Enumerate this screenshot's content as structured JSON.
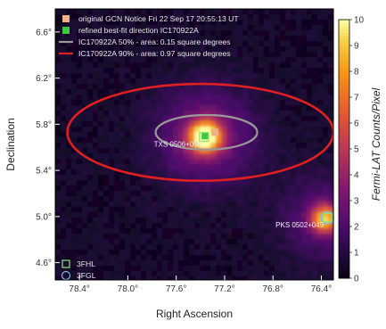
{
  "chart_data": {
    "type": "heatmap",
    "xlabel": "Right Ascension",
    "ylabel": "Declination",
    "colorbar_label": "Fermi-LAT Counts/Pixel",
    "xlim": [
      78.6,
      76.3
    ],
    "ylim": [
      4.45,
      6.8
    ],
    "x_ticks": [
      {
        "value": 78.4,
        "label": "78.4°"
      },
      {
        "value": 78.0,
        "label": "78.0°"
      },
      {
        "value": 77.6,
        "label": "77.6°"
      },
      {
        "value": 77.2,
        "label": "77.2°"
      },
      {
        "value": 76.8,
        "label": "76.8°"
      },
      {
        "value": 76.4,
        "label": "76.4°"
      }
    ],
    "y_ticks": [
      {
        "value": 4.6,
        "label": "4.6°"
      },
      {
        "value": 5.0,
        "label": "5.0°"
      },
      {
        "value": 5.4,
        "label": "5.4°"
      },
      {
        "value": 5.8,
        "label": "5.8°"
      },
      {
        "value": 6.2,
        "label": "6.2°"
      },
      {
        "value": 6.6,
        "label": "6.6°"
      }
    ],
    "colorbar": {
      "min": 0,
      "max": 10,
      "ticks": [
        0,
        1,
        2,
        3,
        4,
        5,
        6,
        7,
        8,
        9,
        10
      ]
    },
    "legend_top": [
      {
        "key": "gcn",
        "label": "original GCN Notice Fri 22 Sep 17 20:55:13 UT",
        "marker": "square",
        "color": "#f0b088"
      },
      {
        "key": "refined",
        "label": "refined best-fit direction IC170922A",
        "marker": "square",
        "color": "#3cc83c"
      },
      {
        "key": "c50",
        "label": "IC170922A 50% - area: 0.15 square degrees",
        "marker": "line",
        "color": "#9a9a9a"
      },
      {
        "key": "c90",
        "label": "IC170922A 90% - area: 0.97 square degrees",
        "marker": "line",
        "color": "#e02020"
      }
    ],
    "legend_bottom": [
      {
        "key": "3fhl",
        "label": "3FHL",
        "marker": "square-open",
        "color": "#8ee07a"
      },
      {
        "key": "3fgl",
        "label": "3FGL",
        "marker": "circle-open",
        "color": "#7fb8e8"
      }
    ],
    "markers": {
      "gcn": {
        "ra": 77.28,
        "dec": 5.73
      },
      "refined": {
        "ra": 77.36,
        "dec": 5.7
      },
      "txs_3fhl": {
        "ra": 77.37,
        "dec": 5.69
      },
      "pks_3fhl": {
        "ra": 76.35,
        "dec": 4.99
      }
    },
    "contours": {
      "c90": {
        "center_ra": 77.4,
        "center_dec": 5.73,
        "half_width_ra": 1.1,
        "half_height_dec": 0.42,
        "color": "#e02020"
      },
      "c50": {
        "center_ra": 77.35,
        "center_dec": 5.73,
        "half_width_ra": 0.42,
        "half_height_dec": 0.15,
        "color": "#9a9a9a"
      }
    },
    "hotspots": [
      {
        "ra": 77.36,
        "dec": 5.69,
        "peak": 10,
        "sigma": 0.09
      },
      {
        "ra": 77.36,
        "dec": 5.69,
        "peak": 3,
        "sigma": 0.28
      },
      {
        "ra": 76.37,
        "dec": 4.98,
        "peak": 7,
        "sigma": 0.08
      },
      {
        "ra": 76.37,
        "dec": 4.98,
        "peak": 2,
        "sigma": 0.25
      }
    ],
    "source_labels": [
      {
        "text": "TXS 0506+056",
        "ra": 77.36,
        "dec": 5.69,
        "anchor": "end"
      },
      {
        "text": "PKS 0502+049",
        "ra": 76.35,
        "dec": 4.99,
        "anchor": "end"
      }
    ],
    "colors": {
      "frame": "#000000",
      "background": "#120518"
    }
  }
}
